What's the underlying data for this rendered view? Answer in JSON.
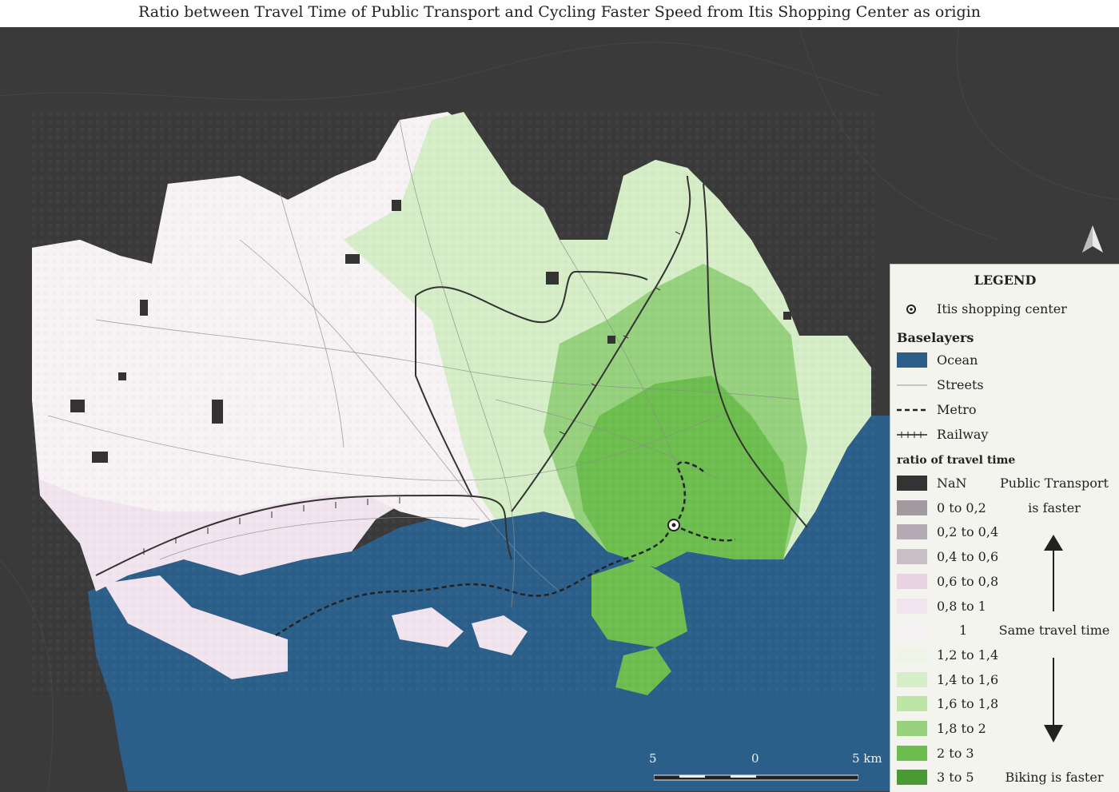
{
  "title": "Ratio between Travel Time of Public Transport and Cycling Faster Speed from Itis Shopping Center as origin",
  "colors": {
    "background_land": "#3a3a3a",
    "ocean": "#2b5f8a",
    "nan": "#333333",
    "class_0_02": "#a39aa1",
    "class_02_04": "#b5a9b3",
    "class_04_06": "#c9bdc6",
    "class_06_08": "#e8d3e3",
    "class_08_1": "#f1e4ee",
    "class_1": "#f7f2f4",
    "class_12_14": "#eef5e6",
    "class_14_16": "#d6eec7",
    "class_16_18": "#bde5a6",
    "class_18_2": "#96d27e",
    "class_2_3": "#6dbe4f",
    "class_3_5": "#4a9a34",
    "legend_bg": "#f4f4ee"
  },
  "legend": {
    "title": "LEGEND",
    "origin_label": "Itis shopping center",
    "baselayers_title": "Baselayers",
    "baselayers": [
      {
        "label": "Ocean",
        "symbol": "ocean-swatch"
      },
      {
        "label": "Streets",
        "symbol": "street-line"
      },
      {
        "label": "Metro",
        "symbol": "metro-dashed-line"
      },
      {
        "label": "Railway",
        "symbol": "railway-line"
      }
    ],
    "ratio_title": "ratio of travel time",
    "classes": [
      {
        "label": "NaN",
        "color_key": "nan"
      },
      {
        "label": "0 to 0,2",
        "color_key": "class_0_02"
      },
      {
        "label": "0,2 to 0,4",
        "color_key": "class_02_04"
      },
      {
        "label": "0,4 to 0,6",
        "color_key": "class_04_06"
      },
      {
        "label": "0,6 to 0,8",
        "color_key": "class_06_08"
      },
      {
        "label": "0,8 to 1",
        "color_key": "class_08_1"
      },
      {
        "label": "1",
        "color_key": "class_1"
      },
      {
        "label": "1,2 to 1,4",
        "color_key": "class_12_14"
      },
      {
        "label": "1,4 to 1,6",
        "color_key": "class_14_16"
      },
      {
        "label": "1,6 to 1,8",
        "color_key": "class_16_18"
      },
      {
        "label": "1,8 to 2",
        "color_key": "class_18_2"
      },
      {
        "label": "2 to 3",
        "color_key": "class_2_3"
      },
      {
        "label": "3 to 5",
        "color_key": "class_3_5"
      }
    ],
    "note_pt_line1": "Public Transport",
    "note_pt_line2": "is faster",
    "note_same": "Same travel time",
    "note_bike": "Biking is faster"
  },
  "scalebar": {
    "left_label": "5",
    "mid_label": "0",
    "right_label": "5 km"
  }
}
